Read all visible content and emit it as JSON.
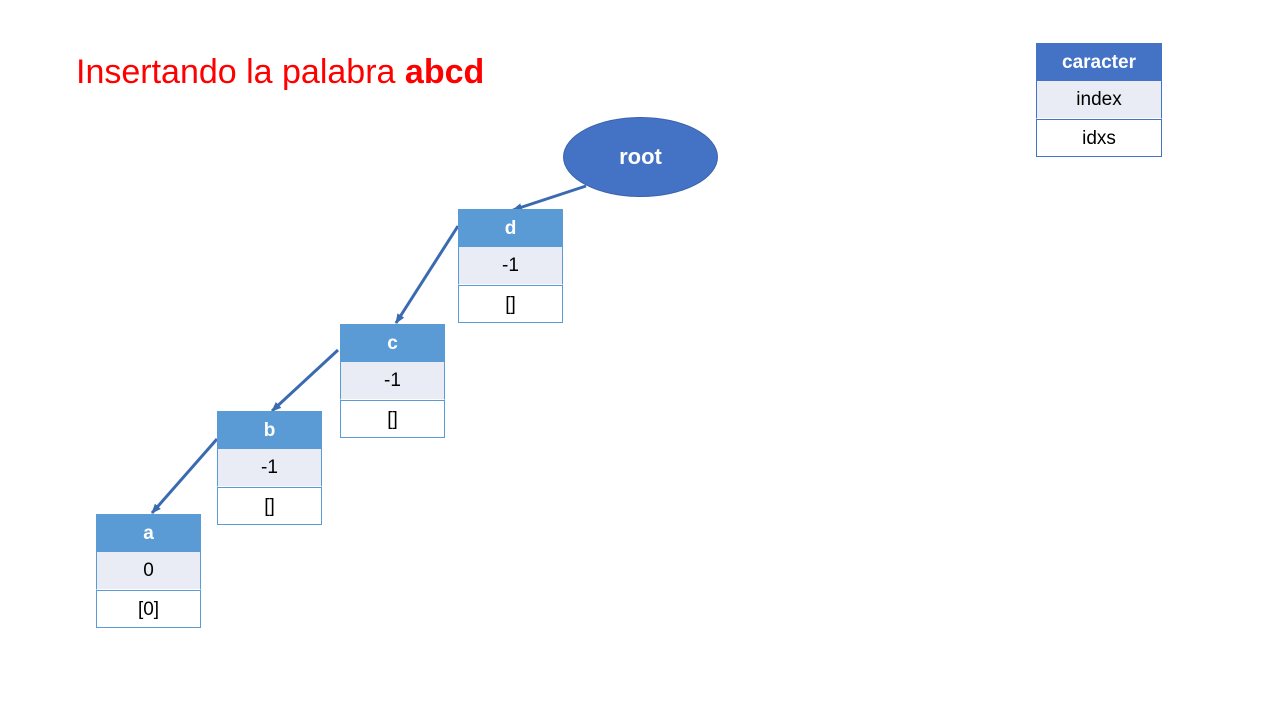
{
  "title": {
    "prefix": "Insertando la palabra ",
    "word": "abcd"
  },
  "legend": {
    "header": "caracter",
    "row1": "index",
    "row2": "idxs"
  },
  "root_label": "root",
  "nodes": [
    {
      "char": "d",
      "index": "-1",
      "idxs": "[]"
    },
    {
      "char": "c",
      "index": "-1",
      "idxs": "[]"
    },
    {
      "char": "b",
      "index": "-1",
      "idxs": "[]"
    },
    {
      "char": "a",
      "index": "0",
      "idxs": "[0]"
    }
  ],
  "colors": {
    "title": "#ff0000",
    "node_header": "#5b9bd5",
    "legend_header": "#4472c4",
    "root": "#4472c4",
    "arrow": "#3a6ab0"
  }
}
